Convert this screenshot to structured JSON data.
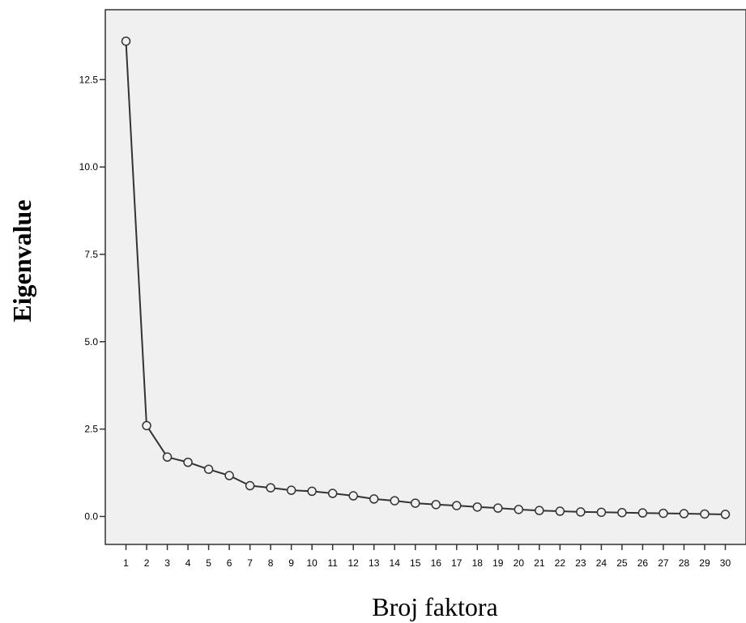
{
  "chart_data": {
    "type": "line",
    "title": "",
    "xlabel": "Broj faktora",
    "ylabel": "Eigenvalue",
    "x": [
      1,
      2,
      3,
      4,
      5,
      6,
      7,
      8,
      9,
      10,
      11,
      12,
      13,
      14,
      15,
      16,
      17,
      18,
      19,
      20,
      21,
      22,
      23,
      24,
      25,
      26,
      27,
      28,
      29,
      30
    ],
    "series": [
      {
        "values": [
          13.6,
          2.6,
          1.7,
          1.55,
          1.35,
          1.17,
          0.88,
          0.82,
          0.75,
          0.72,
          0.66,
          0.59,
          0.5,
          0.45,
          0.38,
          0.34,
          0.31,
          0.27,
          0.24,
          0.2,
          0.17,
          0.15,
          0.13,
          0.12,
          0.11,
          0.1,
          0.09,
          0.08,
          0.07,
          0.06
        ]
      }
    ],
    "xlim": [
      0,
      31
    ],
    "ylim": [
      -0.8,
      14.5
    ],
    "yticks": [
      0.0,
      2.5,
      5.0,
      7.5,
      10.0,
      12.5
    ],
    "ytick_labels": [
      "0.0",
      "2.5",
      "5.0",
      "7.5",
      "10.0",
      "12.5"
    ],
    "xtick_labels": [
      "1",
      "2",
      "3",
      "4",
      "5",
      "6",
      "7",
      "8",
      "9",
      "10",
      "11",
      "12",
      "13",
      "14",
      "15",
      "16",
      "17",
      "18",
      "19",
      "20",
      "21",
      "22",
      "23",
      "24",
      "25",
      "26",
      "27",
      "28",
      "29",
      "30"
    ],
    "grid": false,
    "colors": {
      "plot_background": "#f0f0f0",
      "line": "#333333",
      "marker_stroke": "#333333",
      "axis": "#333333"
    }
  }
}
